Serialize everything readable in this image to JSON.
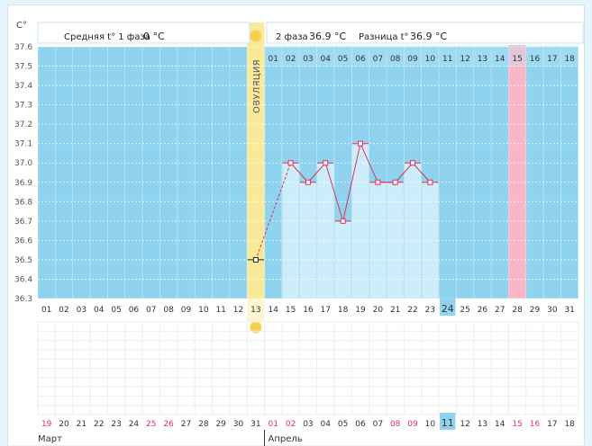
{
  "header": {
    "phase1_label": "Средняя t° 1 фаза",
    "phase1_value": "0 °C",
    "phase2_label": "2 фаза",
    "phase2_value": "36.9 °C",
    "diff_label": "Разница t°",
    "diff_value": "36.9 °C"
  },
  "axis_unit": "С°",
  "ovulation_label": "ОВУЛЯЦИЯ",
  "months": {
    "first": "Март",
    "second": "Апрель"
  },
  "colors": {
    "plot_bg": "#8fd3ef",
    "bar": "#cdedfb",
    "ovulation": "#fbe99a",
    "highlight_red": "#f9b6c7",
    "line": "#e0305a",
    "weekend_text": "#e0305a",
    "current_day": "#8fd3ef"
  },
  "chart_data": {
    "type": "line",
    "title": "",
    "ylim": [
      36.3,
      37.6
    ],
    "y_ticks": [
      "36.3",
      "36.4",
      "36.5",
      "36.6",
      "36.7",
      "36.8",
      "36.9",
      "37.0",
      "37.1",
      "37.2",
      "37.3",
      "37.4",
      "37.5",
      "37.6"
    ],
    "cycle_days": [
      "01",
      "02",
      "03",
      "04",
      "05",
      "06",
      "07",
      "08",
      "09",
      "10",
      "11",
      "12",
      "13",
      "14",
      "15",
      "16",
      "17",
      "18",
      "19",
      "20",
      "21",
      "22",
      "23",
      "24",
      "25",
      "26",
      "27",
      "28",
      "29",
      "30",
      "31"
    ],
    "phase2_days": [
      "01",
      "02",
      "03",
      "04",
      "05",
      "06",
      "07",
      "08",
      "09",
      "10",
      "11",
      "12",
      "13",
      "14",
      "15",
      "16",
      "17",
      "18"
    ],
    "dates": [
      "19",
      "20",
      "21",
      "22",
      "23",
      "24",
      "25",
      "26",
      "27",
      "28",
      "29",
      "30",
      "31",
      "01",
      "02",
      "03",
      "04",
      "05",
      "06",
      "07",
      "08",
      "09",
      "10",
      "11",
      "12",
      "13",
      "14",
      "15",
      "16",
      "17",
      "18"
    ],
    "weekend_dates": [
      0,
      6,
      7,
      13,
      14,
      20,
      21,
      27,
      28
    ],
    "current_index": 23,
    "ovulation_index": 12,
    "highlight_index": 27,
    "temperatures": [
      null,
      null,
      null,
      null,
      null,
      null,
      null,
      null,
      null,
      null,
      null,
      null,
      36.5,
      null,
      37.0,
      36.9,
      37.0,
      36.7,
      37.1,
      36.9,
      36.9,
      37.0,
      36.9,
      null,
      null,
      null,
      null,
      null,
      null,
      null,
      null
    ]
  }
}
